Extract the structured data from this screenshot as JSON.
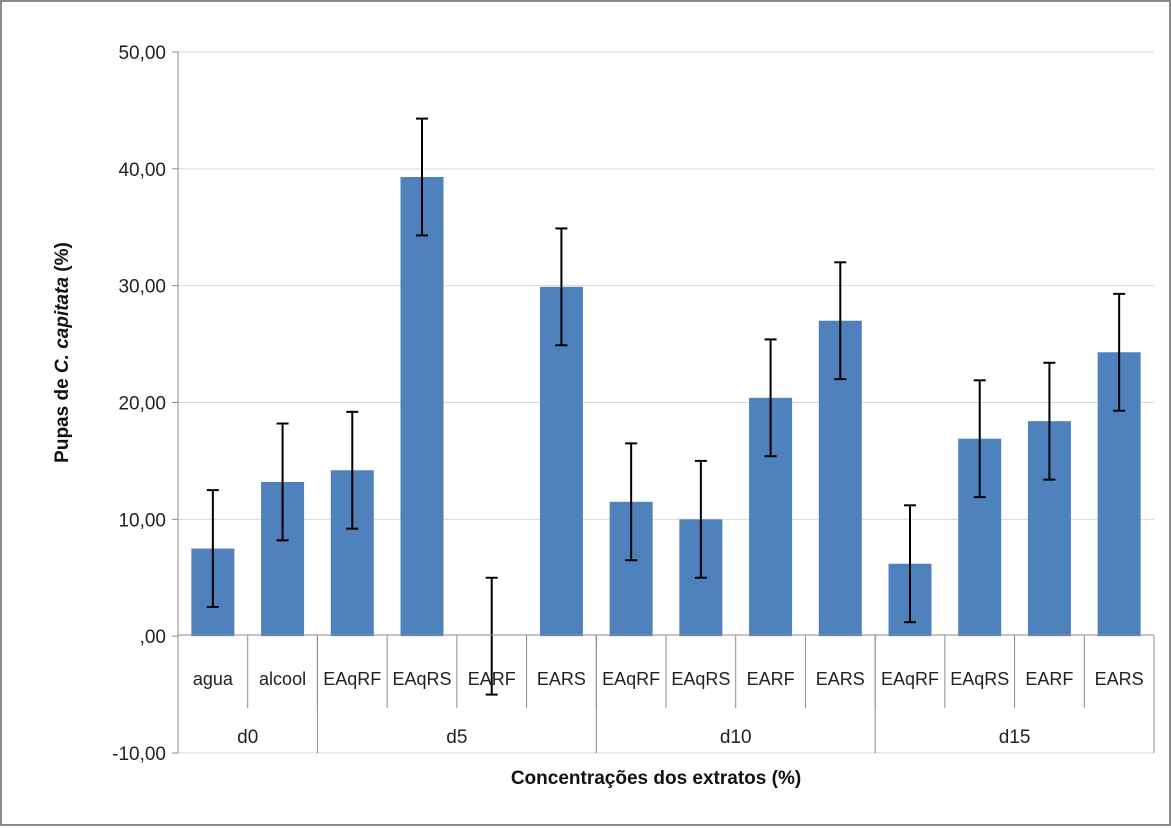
{
  "chart_data": {
    "type": "bar",
    "groups": [
      {
        "label": "d0",
        "categories": [
          "agua",
          "alcool"
        ]
      },
      {
        "label": "d5",
        "categories": [
          "EAqRF",
          "EAqRS",
          "EARF",
          "EARS"
        ]
      },
      {
        "label": "d10",
        "categories": [
          "EAqRF",
          "EAqRS",
          "EARF",
          "EARS"
        ]
      },
      {
        "label": "d15",
        "categories": [
          "EAqRF",
          "EAqRS",
          "EARF",
          "EARS"
        ]
      }
    ],
    "categories": [
      "agua",
      "alcool",
      "EAqRF",
      "EAqRS",
      "EARF",
      "EARS",
      "EAqRF",
      "EAqRS",
      "EARF",
      "EARS",
      "EAqRF",
      "EAqRS",
      "EARF",
      "EARS"
    ],
    "values": [
      7.5,
      13.2,
      14.2,
      39.3,
      0.0,
      29.9,
      11.5,
      10.0,
      20.4,
      27.0,
      6.2,
      16.9,
      18.4,
      24.3
    ],
    "error": [
      5.0,
      5.0,
      5.0,
      5.0,
      5.0,
      5.0,
      5.0,
      5.0,
      5.0,
      5.0,
      5.0,
      5.0,
      5.0,
      5.0
    ],
    "xlabel": "Concentrações dos extratos (%)",
    "ylabel_parts": [
      "Pupas de ",
      "C. capitata",
      " (%)"
    ],
    "ylim": [
      -10,
      50
    ],
    "yticks": [
      50,
      40,
      30,
      20,
      10,
      0,
      -10
    ],
    "ytick_labels": [
      "50,00",
      "40,00",
      "30,00",
      "20,00",
      "10,00",
      ",00",
      "-10,00"
    ],
    "grid": true,
    "bar_color": "#4f81bd",
    "grid_color": "#d9d9d9",
    "axis_color": "#8c8c8c",
    "error_color": "#000000"
  }
}
